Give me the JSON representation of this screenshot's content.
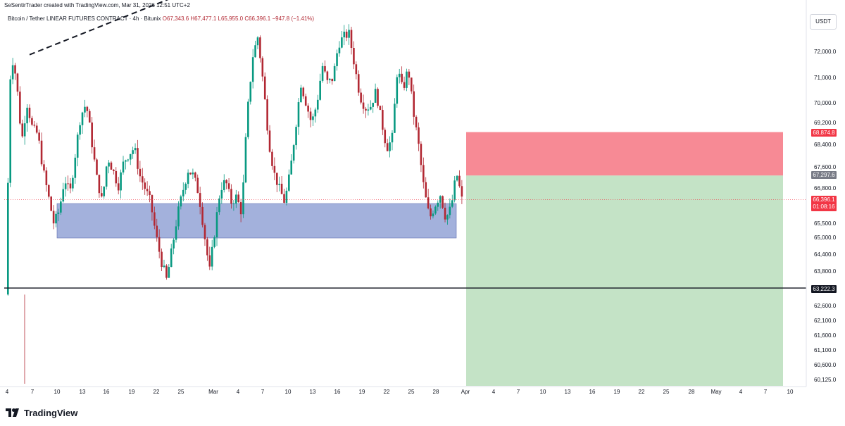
{
  "header": {
    "creator_line": "SeSentirTrader created with TradingView.com, Mar 31, 2026 12:51 UTC+2",
    "symbol_text": "Bitcoin / Tether LINEAR FUTURES CONTRACT · 4h · Bitunix",
    "ohlc_text": "O67,343.6 H67,477.1 L65,955.0 C66,396.1 −947.8 (−1.41%)"
  },
  "currency_button": "USDT",
  "price_axis": {
    "ticks": [
      "72,000.0",
      "71,000.0",
      "70,000.0",
      "69,200.0",
      "68,400.0",
      "67,600.0",
      "66,800.0",
      "65,500.0",
      "65,000.0",
      "64,400.0",
      "63,800.0",
      "63,200.0",
      "62,600.0",
      "62,100.0",
      "61,600.0",
      "61,100.0",
      "60,600.0",
      "60,125.0"
    ],
    "tags": {
      "stop": "68,874.8",
      "entry": "67,297.6",
      "last": "66,396.1",
      "countdown": "01:08:16",
      "horizontal_line": "63,222.3"
    }
  },
  "time_axis": [
    "4",
    "7",
    "10",
    "13",
    "16",
    "19",
    "22",
    "25",
    "Mar",
    "4",
    "7",
    "10",
    "13",
    "16",
    "19",
    "22",
    "25",
    "28",
    "Apr",
    "4",
    "7",
    "10",
    "13",
    "16",
    "19",
    "22",
    "25",
    "28",
    "May",
    "4",
    "7",
    "10"
  ],
  "brand": {
    "name": "TradingView"
  },
  "colors": {
    "bull": "#089981",
    "bear": "#b22833",
    "support_zone": "#a3b1dc",
    "stop_zone": "#f78a95",
    "target_zone": "#c4e3c6"
  },
  "chart_data": {
    "type": "candlestick",
    "timeframe": "4h",
    "price_range": [
      60000,
      72700
    ],
    "support_zone": [
      65000,
      66250
    ],
    "short_position": {
      "stop": 68874.8,
      "entry": 67297.6,
      "target": 60000
    },
    "horizontal_line": 63222.3,
    "last_close": 66396.1,
    "trend_line": {
      "from": 71900,
      "to": 72900
    },
    "close_path": [
      63000,
      72000,
      71000,
      68500,
      70000,
      69000,
      68800,
      67500,
      66500,
      65500,
      66000,
      67200,
      66600,
      68100,
      69500,
      70000,
      68600,
      67200,
      66300,
      68000,
      67500,
      66900,
      67800,
      68100,
      68300,
      67300,
      66800,
      66300,
      65100,
      64200,
      63500,
      64600,
      65800,
      66700,
      67500,
      67300,
      66600,
      65200,
      63800,
      65300,
      66800,
      67100,
      66300,
      66500,
      65900,
      69500,
      71800,
      72600,
      70800,
      68600,
      67400,
      66800,
      66300,
      67400,
      69000,
      70800,
      70000,
      69200,
      70000,
      71500,
      70800,
      71000,
      72300,
      72600,
      72700,
      71500,
      70300,
      69800,
      69900,
      70500,
      69300,
      68300,
      68600,
      71400,
      70500,
      71400,
      69600,
      68300,
      66700,
      65700,
      66200,
      66600,
      65700,
      66100,
      67400,
      66400
    ],
    "x_categories": [
      "4",
      "7",
      "10",
      "13",
      "16",
      "19",
      "22",
      "25",
      "Mar",
      "4",
      "7",
      "10",
      "13",
      "16",
      "19",
      "22",
      "25",
      "28",
      "Apr",
      "4",
      "7",
      "10",
      "13",
      "16",
      "19",
      "22",
      "25",
      "28",
      "May",
      "4",
      "7",
      "10"
    ]
  }
}
